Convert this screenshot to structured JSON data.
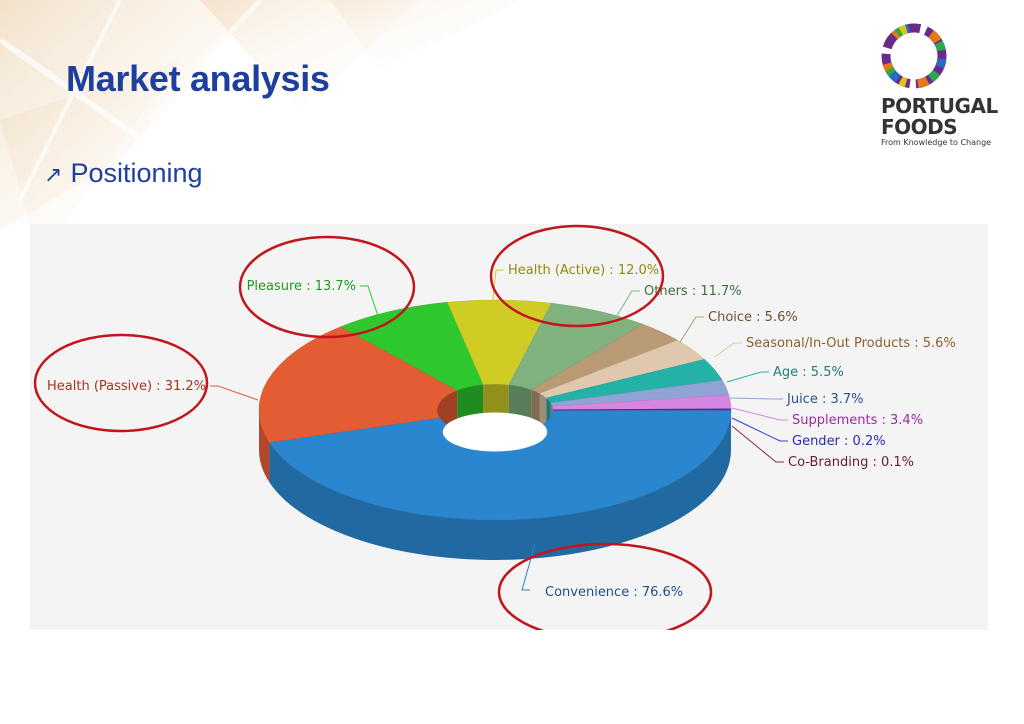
{
  "slide": {
    "title": "Market analysis",
    "bullet": "Positioning",
    "bullet_icon": "arrow-up-right-icon"
  },
  "logo": {
    "line1": "PORTUGAL",
    "line2": "FOODS",
    "tagline": "From Knowledge to Change"
  },
  "colors": {
    "title": "#1f3f9c",
    "highlight_ellipse": "#c0161c"
  },
  "chart_data": {
    "type": "pie",
    "style": "3d-doughnut",
    "labels": [
      "Convenience : 76.6%",
      "Health (Passive) : 31.2%",
      "Pleasure : 13.7%",
      "Health (Active) : 12.0%",
      "Others : 11.7%",
      "Choice : 5.6%",
      "Seasonal/In-Out Products : 5.6%",
      "Age : 5.5%",
      "Juice : 3.7%",
      "Supplements : 3.4%",
      "Gender : 0.2%",
      "Co-Branding : 0.1%"
    ],
    "values": [
      76.6,
      31.2,
      13.7,
      12.0,
      11.7,
      5.6,
      5.6,
      5.5,
      3.7,
      3.4,
      0.2,
      0.1
    ],
    "colors": [
      "#2a86cf",
      "#e45c34",
      "#2ec82e",
      "#cfcd25",
      "#7fb27f",
      "#b89a74",
      "#e0c8ae",
      "#23b1a8",
      "#8fa3d4",
      "#d486e0",
      "#3a3acf",
      "#8a2a4a"
    ],
    "label_colors": [
      "#1f4f8c",
      "#a8321e",
      "#1f9a1f",
      "#8f8a10",
      "#3f6e3f",
      "#6e5030",
      "#8a6030",
      "#1f7f78",
      "#2f4f8f",
      "#9a2aa8",
      "#2a2ab0",
      "#6a1a3a"
    ],
    "highlighted": [
      "Convenience : 76.6%",
      "Health (Passive) : 31.2%",
      "Pleasure : 13.7%",
      "Health (Active) : 12.0%"
    ]
  }
}
